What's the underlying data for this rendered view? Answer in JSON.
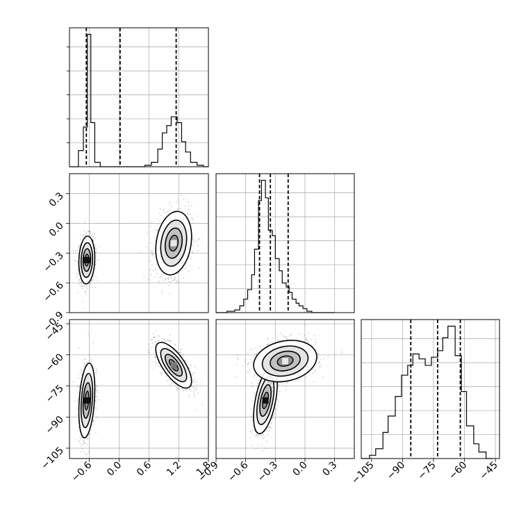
{
  "chart_data": {
    "type": "corner",
    "grid": true,
    "ticks": {
      "p1": [
        {
          "v": -0.6,
          "label": "−0.6"
        },
        {
          "v": 0.0,
          "label": "0.0"
        },
        {
          "v": 0.6,
          "label": "0.6"
        },
        {
          "v": 1.2,
          "label": "1.2"
        },
        {
          "v": 1.8,
          "label": "1.8"
        }
      ],
      "p2": [
        {
          "v": -0.9,
          "label": "−0.9"
        },
        {
          "v": -0.6,
          "label": "−0.6"
        },
        {
          "v": -0.3,
          "label": "−0.3"
        },
        {
          "v": 0.0,
          "label": "0.0"
        },
        {
          "v": 0.3,
          "label": "0.3"
        }
      ],
      "p3": [
        {
          "v": -105,
          "label": "−105"
        },
        {
          "v": -90,
          "label": "−90"
        },
        {
          "v": -75,
          "label": "−75"
        },
        {
          "v": -60,
          "label": "−60"
        },
        {
          "v": -45,
          "label": "−45"
        }
      ]
    },
    "ranges": {
      "p1": [
        -1.0,
        1.8
      ],
      "p2": [
        -0.9,
        0.5
      ],
      "p3": [
        -110,
        -43
      ]
    },
    "quantiles": {
      "p1": [
        -0.66,
        0.02,
        1.15
      ],
      "p2": [
        -0.46,
        -0.35,
        -0.17
      ],
      "p3": [
        -86,
        -73,
        -62
      ]
    },
    "histograms": {
      "p1": {
        "edges": [
          -1.0,
          -0.82,
          -0.72,
          -0.64,
          -0.57,
          -0.49,
          -0.38,
          -0.2,
          0.0,
          0.2,
          0.35,
          0.52,
          0.65,
          0.78,
          0.87,
          0.96,
          1.05,
          1.17,
          1.26,
          1.34,
          1.44,
          1.57,
          1.7,
          1.8
        ],
        "counts": [
          0.0,
          0.11,
          0.27,
          0.9,
          0.3,
          0.03,
          0.0,
          0.0,
          0.0,
          0.0,
          0.0,
          0.01,
          0.03,
          0.12,
          0.23,
          0.28,
          0.34,
          0.3,
          0.17,
          0.1,
          0.03,
          0.01,
          0.0
        ]
      },
      "p2": {
        "edges": [
          -0.9,
          -0.79,
          -0.71,
          -0.66,
          -0.62,
          -0.58,
          -0.54,
          -0.51,
          -0.47,
          -0.44,
          -0.4,
          -0.37,
          -0.33,
          -0.3,
          -0.26,
          -0.23,
          -0.19,
          -0.16,
          -0.13,
          -0.09,
          -0.06,
          -0.02,
          0.02,
          0.07,
          0.15,
          0.3
        ],
        "counts": [
          0.0,
          0.01,
          0.02,
          0.05,
          0.1,
          0.17,
          0.28,
          0.47,
          0.83,
          0.98,
          0.85,
          0.61,
          0.57,
          0.4,
          0.31,
          0.22,
          0.19,
          0.15,
          0.1,
          0.07,
          0.05,
          0.03,
          0.01,
          0.0,
          0.0
        ]
      },
      "p3": {
        "edges": [
          -110,
          -106,
          -103,
          -99.5,
          -97,
          -93.5,
          -90.5,
          -87.5,
          -85,
          -82,
          -79,
          -76,
          -73,
          -70.5,
          -68,
          -64.5,
          -61.5,
          -59,
          -55.5,
          -53,
          -49.5,
          -46
        ],
        "counts": [
          0.0,
          0.02,
          0.06,
          0.16,
          0.26,
          0.38,
          0.51,
          0.57,
          0.64,
          0.61,
          0.57,
          0.62,
          0.66,
          0.74,
          0.81,
          0.63,
          0.41,
          0.2,
          0.09,
          0.04,
          0.0
        ]
      }
    },
    "density_modes": {
      "p1_vs_p2": [
        {
          "center": [
            -0.65,
            -0.37
          ],
          "sd": [
            0.08,
            0.12
          ],
          "corr": 0.1,
          "weight": 0.5,
          "peak": "dark"
        },
        {
          "center": [
            1.1,
            -0.2
          ],
          "sd": [
            0.18,
            0.16
          ],
          "corr": 0.2,
          "weight": 0.5,
          "peak": "light"
        }
      ],
      "p1_vs_p3": [
        {
          "center": [
            -0.65,
            -82
          ],
          "sd": [
            0.08,
            9
          ],
          "corr": 0.3,
          "weight": 0.5,
          "peak": "dark"
        },
        {
          "center": [
            1.1,
            -65
          ],
          "sd": [
            0.18,
            5.5
          ],
          "corr": -0.7,
          "weight": 0.5,
          "peak": "medium"
        }
      ],
      "p2_vs_p3": [
        {
          "center": [
            -0.4,
            -82
          ],
          "sd": [
            0.06,
            8
          ],
          "corr": 0.5,
          "weight": 0.5,
          "peak": "dark"
        },
        {
          "center": [
            -0.2,
            -63
          ],
          "sd": [
            0.16,
            5
          ],
          "corr": 0.2,
          "weight": 0.5,
          "peak": "light"
        }
      ]
    }
  }
}
